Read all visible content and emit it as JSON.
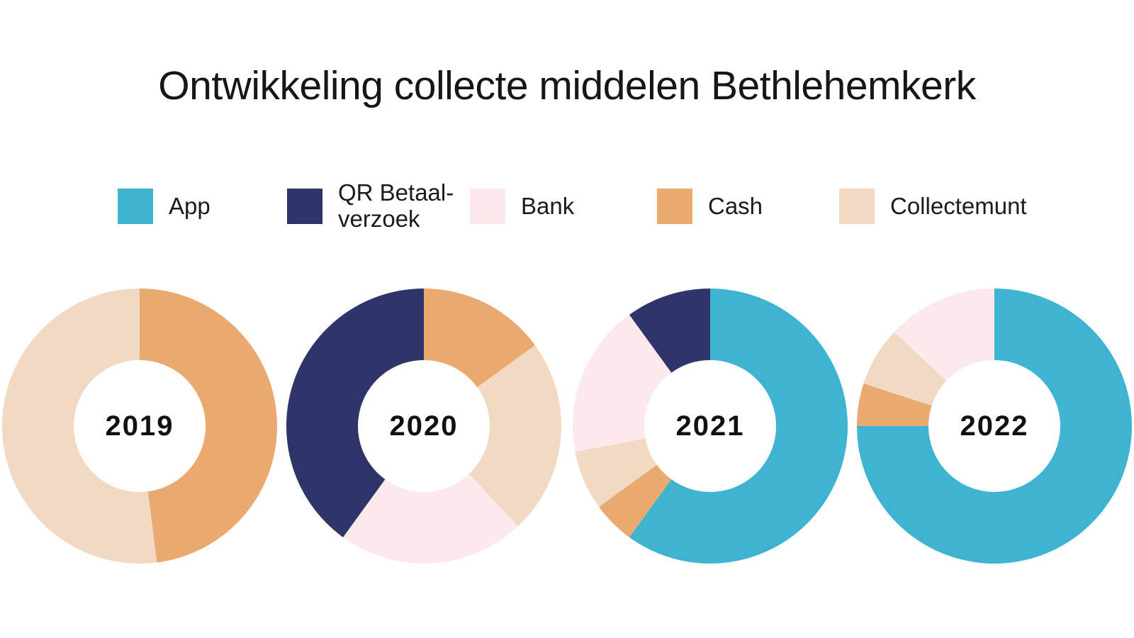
{
  "title": "Ontwikkeling collecte middelen Bethlehemkerk",
  "colors": {
    "app": "#3FB3D2",
    "qr": "#303569",
    "bank": "#FCE9EC",
    "cash": "#EAA96E",
    "collectemunt": "#F2D9C3"
  },
  "legend": [
    {
      "key": "app",
      "label": "App"
    },
    {
      "key": "qr",
      "label": "QR Betaal-\nverzoek"
    },
    {
      "key": "bank",
      "label": "Bank"
    },
    {
      "key": "cash",
      "label": "Cash"
    },
    {
      "key": "collectemunt",
      "label": "Collectemunt"
    }
  ],
  "chart_data": [
    {
      "type": "pie",
      "subtype": "donut",
      "title": "2019",
      "start_angle_deg": 0,
      "direction": "clockwise",
      "values_are_percent": true,
      "segments": [
        {
          "name": "Cash",
          "key": "cash",
          "value": 48
        },
        {
          "name": "Collectemunt",
          "key": "collectemunt",
          "value": 52
        }
      ]
    },
    {
      "type": "pie",
      "subtype": "donut",
      "title": "2020",
      "start_angle_deg": 0,
      "direction": "clockwise",
      "values_are_percent": true,
      "segments": [
        {
          "name": "Cash",
          "key": "cash",
          "value": 15
        },
        {
          "name": "Collectemunt",
          "key": "collectemunt",
          "value": 23
        },
        {
          "name": "Bank",
          "key": "bank",
          "value": 22
        },
        {
          "name": "QR Betaalverzoek",
          "key": "qr",
          "value": 40
        }
      ]
    },
    {
      "type": "pie",
      "subtype": "donut",
      "title": "2021",
      "start_angle_deg": 0,
      "direction": "clockwise",
      "values_are_percent": true,
      "segments": [
        {
          "name": "App",
          "key": "app",
          "value": 60
        },
        {
          "name": "Cash",
          "key": "cash",
          "value": 5
        },
        {
          "name": "Collectemunt",
          "key": "collectemunt",
          "value": 7
        },
        {
          "name": "Bank",
          "key": "bank",
          "value": 18
        },
        {
          "name": "QR Betaalverzoek",
          "key": "qr",
          "value": 10
        }
      ]
    },
    {
      "type": "pie",
      "subtype": "donut",
      "title": "2022",
      "start_angle_deg": 0,
      "direction": "clockwise",
      "values_are_percent": true,
      "segments": [
        {
          "name": "App",
          "key": "app",
          "value": 75
        },
        {
          "name": "Cash",
          "key": "cash",
          "value": 5
        },
        {
          "name": "Collectemunt",
          "key": "collectemunt",
          "value": 7
        },
        {
          "name": "Bank",
          "key": "bank",
          "value": 13
        }
      ]
    }
  ]
}
